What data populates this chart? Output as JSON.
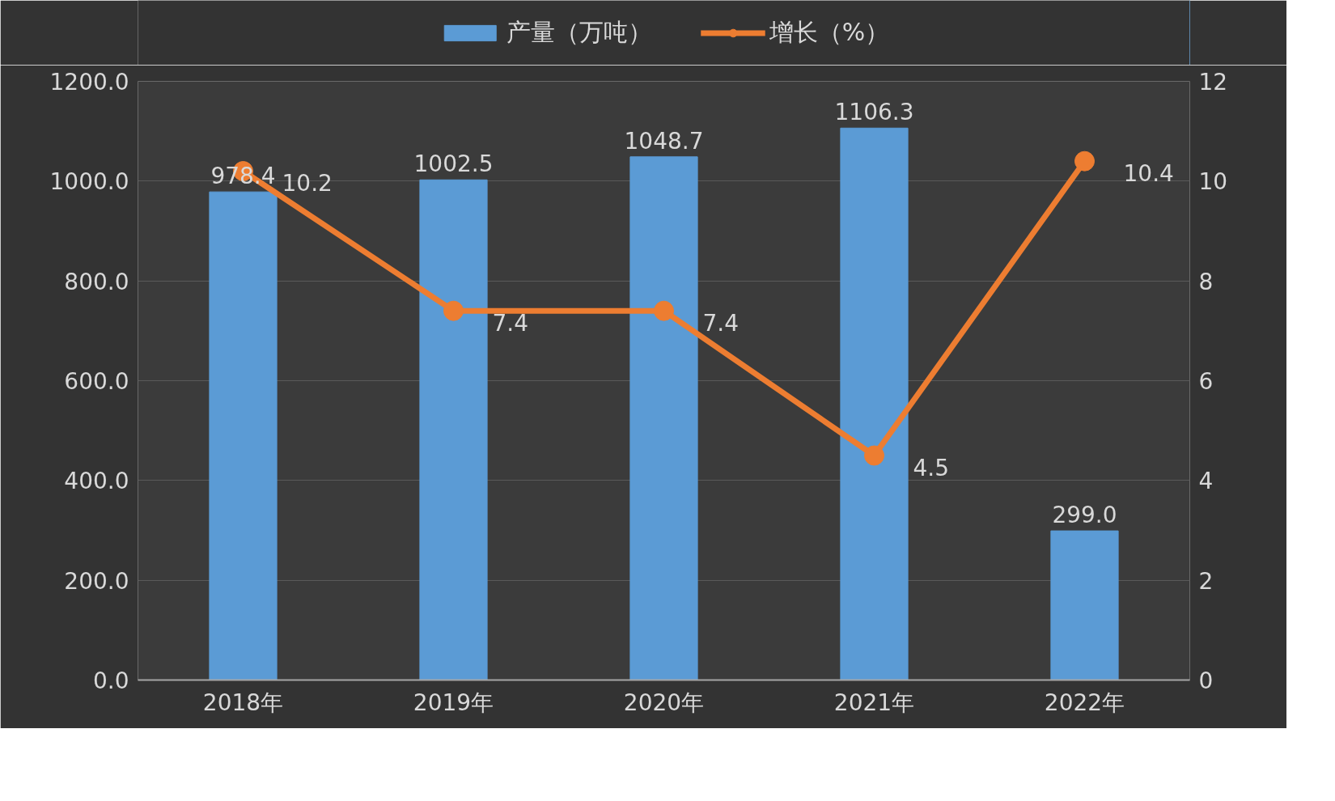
{
  "chart_data": {
    "type": "bar",
    "categories": [
      "2018年",
      "2019年",
      "2020年",
      "2021年",
      "2022年"
    ],
    "series": [
      {
        "name": "产量（万吨）",
        "color": "#5b9bd5",
        "values": [
          978.4,
          1002.5,
          1048.7,
          1106.3,
          299.0
        ],
        "value_labels": [
          "978.4",
          "1002.5",
          "1048.7",
          "1106.3",
          "299.0"
        ]
      },
      {
        "name": "增长（%）",
        "type": "line",
        "axis": "y2",
        "color": "#ed7d31",
        "values": [
          10.2,
          7.4,
          7.4,
          4.5,
          10.4
        ],
        "value_labels": [
          "10.2",
          "7.4",
          "7.4",
          "4.5",
          "10.4"
        ]
      }
    ],
    "ylim": [
      0,
      1200
    ],
    "yticks": [
      {
        "value": 0,
        "label": "0.0"
      },
      {
        "value": 200,
        "label": "200.0"
      },
      {
        "value": 400,
        "label": "400.0"
      },
      {
        "value": 600,
        "label": "600.0"
      },
      {
        "value": 800,
        "label": "800.0"
      },
      {
        "value": 1000,
        "label": "1000.0"
      },
      {
        "value": 1200,
        "label": "1200.0"
      }
    ],
    "y2lim": [
      0,
      12
    ],
    "y2ticks": [
      0,
      2,
      4,
      6,
      8,
      10,
      12
    ],
    "grid": "y",
    "legend": "top",
    "marker": "circle",
    "line_style": "solid"
  }
}
